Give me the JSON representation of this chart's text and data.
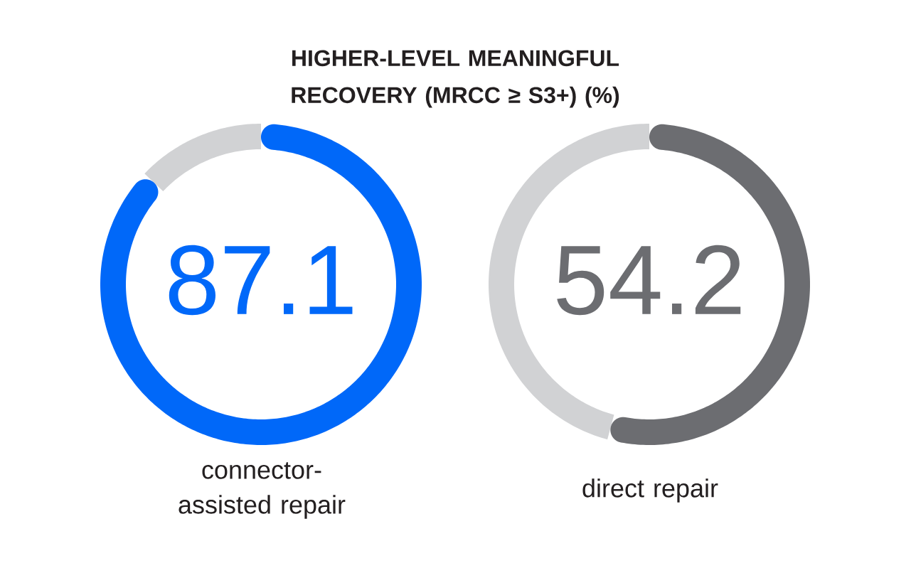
{
  "chart_data": [
    {
      "type": "donut",
      "title": "HIGHER-LEVEL MEANINGFUL RECOVERY (MRCC ≥ S3+) (%)",
      "xlabel": "connector-assisted repair",
      "categories": [
        null,
        null
      ],
      "values": [
        87.1,
        12.9
      ],
      "colors": [
        "#0068f9",
        "#d1d2d4"
      ],
      "value_labels": [
        "87.1",
        null
      ]
    },
    {
      "type": "donut",
      "xlabel": "direct repair",
      "categories": [
        null,
        null
      ],
      "values": [
        54.2,
        45.8
      ],
      "colors": [
        "#6c6d71",
        "#d1d2d4"
      ],
      "value_labels": [
        "54.2",
        null
      ]
    }
  ]
}
